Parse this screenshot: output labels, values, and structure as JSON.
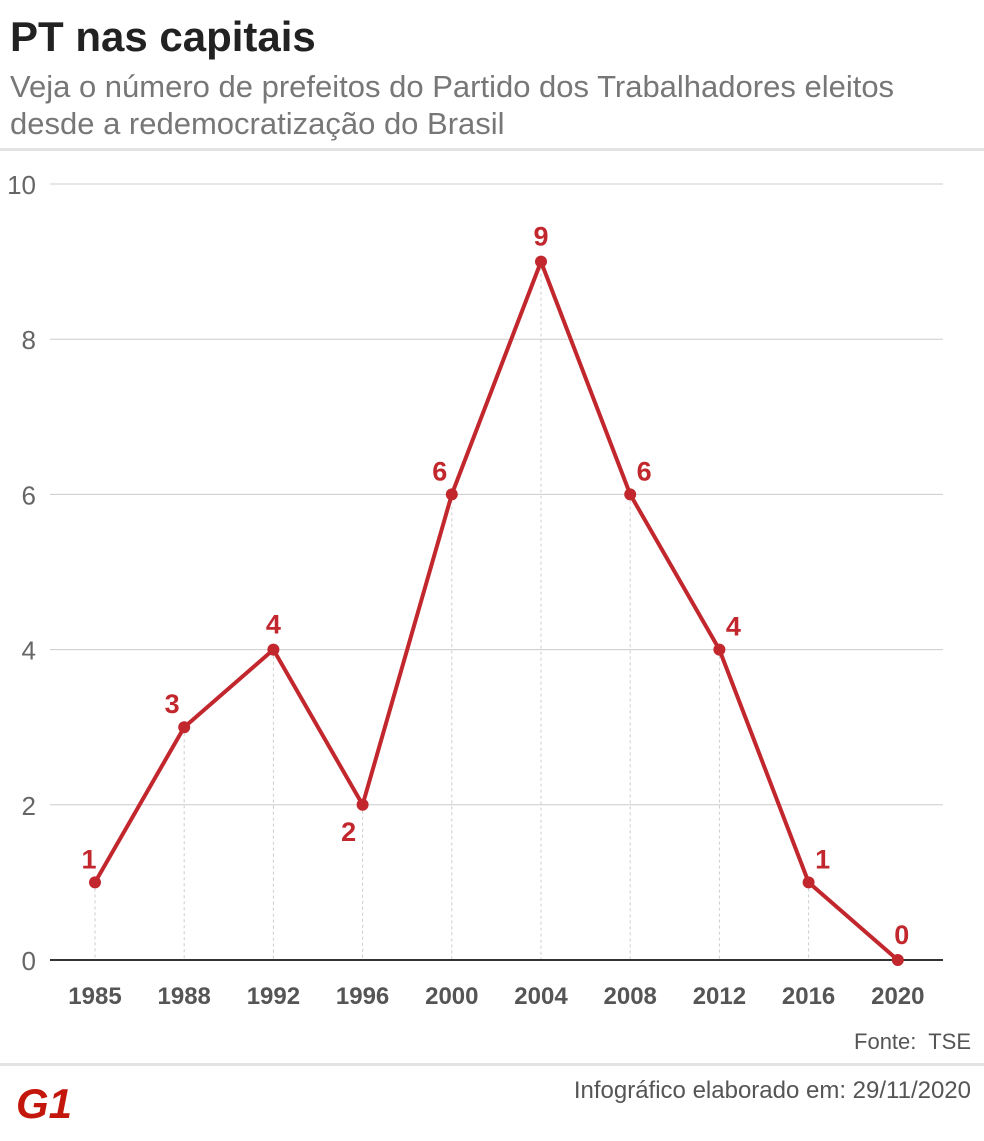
{
  "header": {
    "title": "PT nas capitais",
    "subtitle": "Veja o número de prefeitos do Partido dos Trabalhadores eleitos desde a redemocratização do Brasil"
  },
  "footer": {
    "source": "Fonte:  TSE",
    "note": "Infográfico elaborado em: 29/11/2020",
    "logo_text": "G1"
  },
  "colors": {
    "series": "#c1272d",
    "logo": "#c4170c"
  },
  "chart_data": {
    "type": "line",
    "title": "PT nas capitais",
    "xlabel": "",
    "ylabel": "",
    "categories": [
      "1985",
      "1988",
      "1992",
      "1996",
      "2000",
      "2004",
      "2008",
      "2012",
      "2016",
      "2020"
    ],
    "values": [
      1,
      3,
      4,
      2,
      6,
      9,
      6,
      4,
      1,
      0
    ],
    "ylim": [
      0,
      10
    ],
    "yticks": [
      "0",
      "2",
      "4",
      "6",
      "8",
      "10"
    ],
    "data_labels": [
      "1",
      "3",
      "4",
      "2",
      "6",
      "9",
      "6",
      "4",
      "1",
      "0"
    ],
    "grid": true,
    "legend": "none"
  }
}
